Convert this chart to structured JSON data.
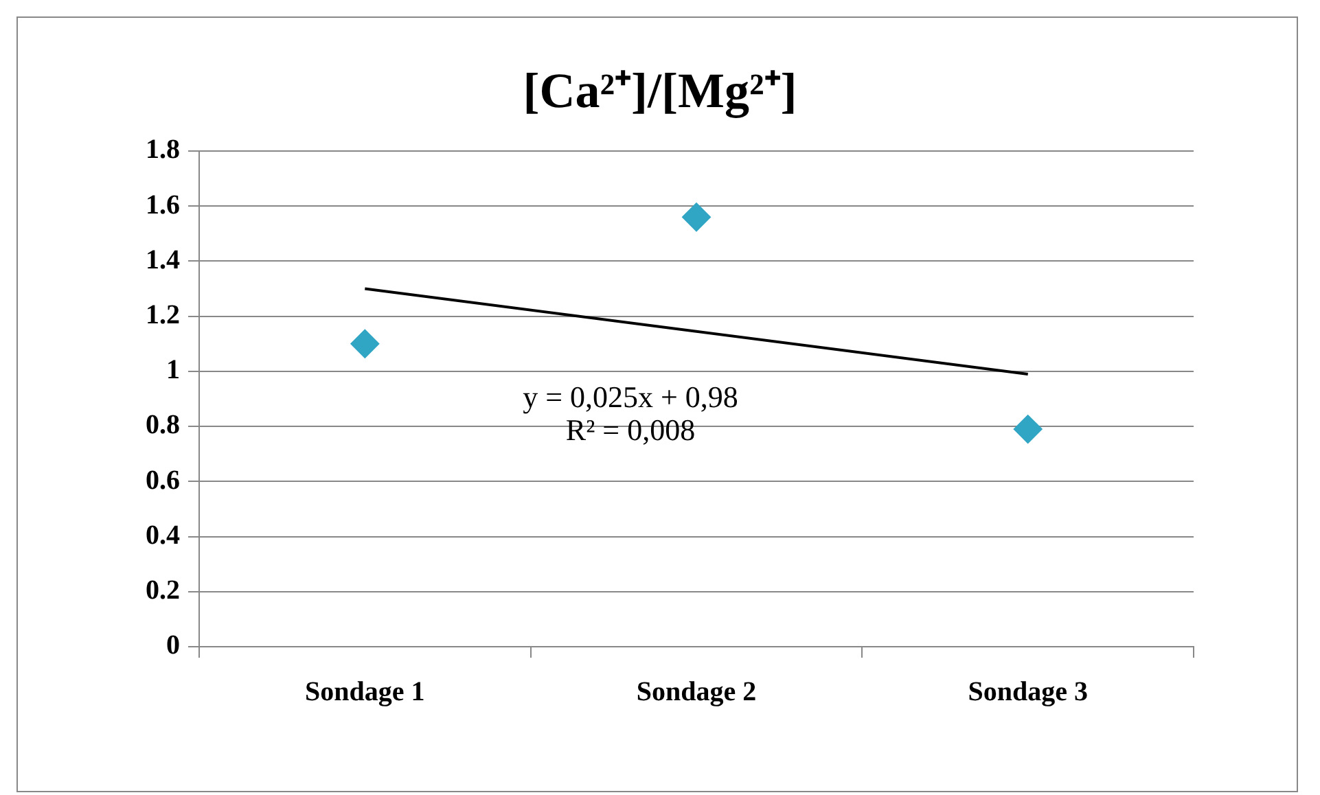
{
  "chart_data": {
    "type": "scatter",
    "title": "[Ca²⁺]/[Mg²⁺]",
    "categories": [
      "Sondage 1",
      "Sondage 2",
      "Sondage 3"
    ],
    "series": [
      {
        "color": "#31a5c4",
        "marker": "diamond",
        "values": [
          1.1,
          1.56,
          0.79
        ]
      },
      {
        "type": "line",
        "color": "#000000",
        "marker": "none",
        "line_style": "solid",
        "x": [
          "Sondage 1",
          "Sondage 2",
          "Sondage 3"
        ],
        "values": [
          1.3,
          1.145,
          0.99
        ]
      }
    ],
    "ylim": [
      0,
      1.8
    ],
    "yticks": [
      0,
      0.2,
      0.4,
      0.6,
      0.8,
      1,
      1.2,
      1.4,
      1.6,
      1.8
    ],
    "grid": "y",
    "legend": false,
    "annotations": [
      "y = 0,025x + 0,98",
      "R² = 0,008"
    ]
  }
}
